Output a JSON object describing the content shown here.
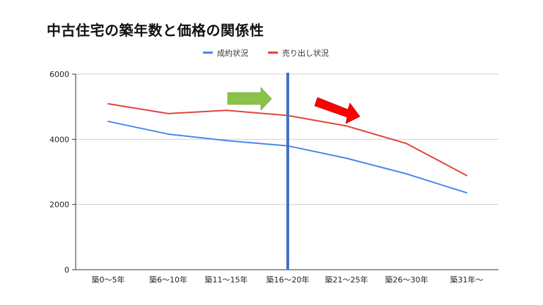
{
  "chart_data": {
    "type": "line",
    "title": "中古住宅の築年数と価格の関係性",
    "xlabel": "",
    "ylabel": "",
    "categories": [
      "築0〜5年",
      "築6〜10年",
      "築11〜15年",
      "築16〜20年",
      "築21〜25年",
      "築26〜30年",
      "築31年〜"
    ],
    "ylim": [
      0,
      6000
    ],
    "yticks": [
      0,
      2000,
      4000,
      6000
    ],
    "grid": true,
    "legend_position": "top-center",
    "series": [
      {
        "name": "成約状況",
        "color": "#4a86e8",
        "values": [
          4550,
          4160,
          3960,
          3800,
          3420,
          2940,
          2360
        ]
      },
      {
        "name": "売り出し状況",
        "color": "#e0443a",
        "values": [
          5090,
          4790,
          4890,
          4730,
          4410,
          3870,
          2890
        ]
      }
    ],
    "annotations": [
      {
        "type": "vertical-line",
        "category": "築16〜20年",
        "color": "#4472c4"
      },
      {
        "type": "arrow",
        "direction": "right",
        "color": "#8bc34a",
        "label": ""
      },
      {
        "type": "arrow",
        "direction": "down-right",
        "color": "#ff0000",
        "label": ""
      }
    ]
  }
}
